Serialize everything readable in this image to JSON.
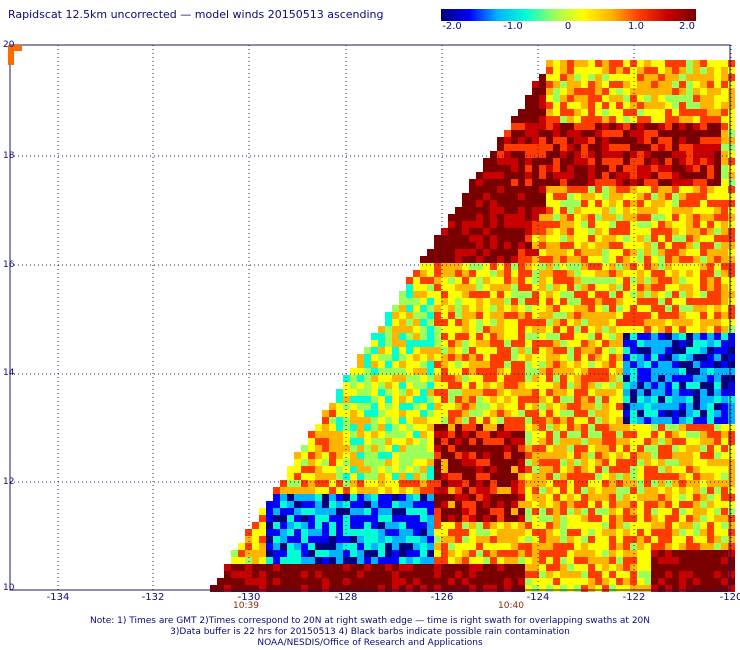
{
  "title": "Rapidscat 12.5km uncorrected — model winds 20150513 ascending",
  "colorbar": {
    "ticks": [
      "-2.0",
      "-1.0",
      "0",
      "1.0",
      "2.0"
    ],
    "min": -2.0,
    "max": 2.0,
    "colors": [
      "#00007a",
      "#0000ff",
      "#00b4ff",
      "#00ffd2",
      "#9cff5a",
      "#ffff00",
      "#ffb400",
      "#ff3c00",
      "#c80000",
      "#7a0000"
    ]
  },
  "map": {
    "lat_labels": [
      "20",
      "18",
      "16",
      "14",
      "12",
      "10"
    ],
    "lon_labels": [
      "-134",
      "-132",
      "-130",
      "-128",
      "-126",
      "-124",
      "-122",
      "-120"
    ],
    "time_labels": [
      {
        "text": "10:39",
        "lon": -130
      },
      {
        "text": "10:40",
        "lon": -125
      }
    ],
    "lat_range": [
      10,
      20
    ],
    "lon_range": [
      -135,
      -120
    ]
  },
  "notes": [
    "Note: 1) Times are GMT 2)Times correspond to 20N at right swath edge — time is right swath for overlapping swaths at 20N",
    "3)Data buffer is 22 hrs for 20150513 4) Black barbs indicate possible rain contamination",
    "NOAA/NESDIS/Office of Research and Applications"
  ]
}
